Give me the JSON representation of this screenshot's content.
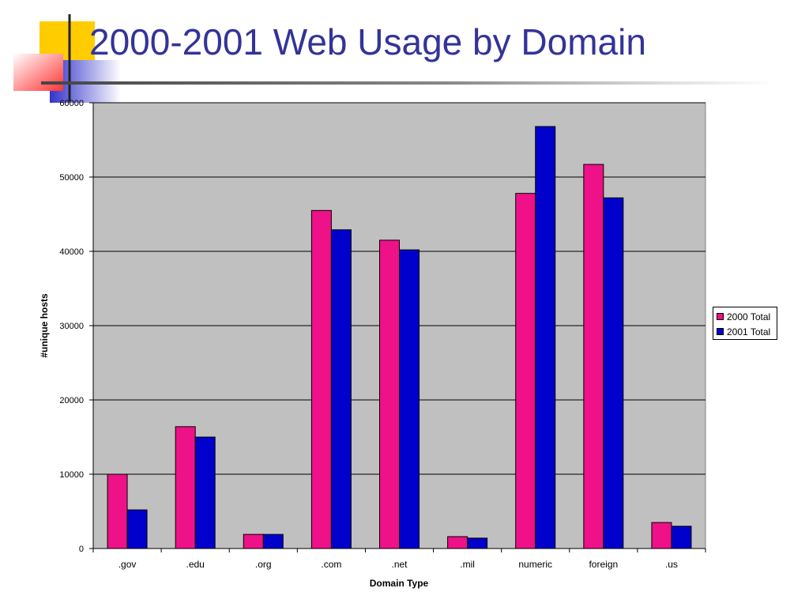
{
  "slide": {
    "title": "2000-2001 Web Usage by Domain"
  },
  "colors": {
    "title": "#333399",
    "plot_background": "#c0c0c0",
    "series_2000": "#ee1188",
    "series_2001": "#0000cc",
    "deco_yellow": "#ffcc00",
    "deco_red": "#ff3333",
    "deco_blue": "#3333cc"
  },
  "chart_data": {
    "type": "bar",
    "xlabel": "Domain Type",
    "ylabel": "#unique hosts",
    "ylim": [
      0,
      60000
    ],
    "yticks": [
      0,
      10000,
      20000,
      30000,
      40000,
      50000,
      60000
    ],
    "grid": true,
    "legend_position": "right",
    "categories": [
      ".gov",
      ".edu",
      ".org",
      ".com",
      ".net",
      ".mil",
      "numeric",
      "foreign",
      ".us"
    ],
    "series": [
      {
        "name": "2000 Total",
        "color": "#ee1188",
        "values": [
          10000,
          16400,
          1900,
          45500,
          41500,
          1600,
          47800,
          51700,
          3500
        ]
      },
      {
        "name": "2001 Total",
        "color": "#0000cc",
        "values": [
          5200,
          15000,
          1900,
          42900,
          40200,
          1400,
          56800,
          47200,
          3000
        ]
      }
    ]
  }
}
